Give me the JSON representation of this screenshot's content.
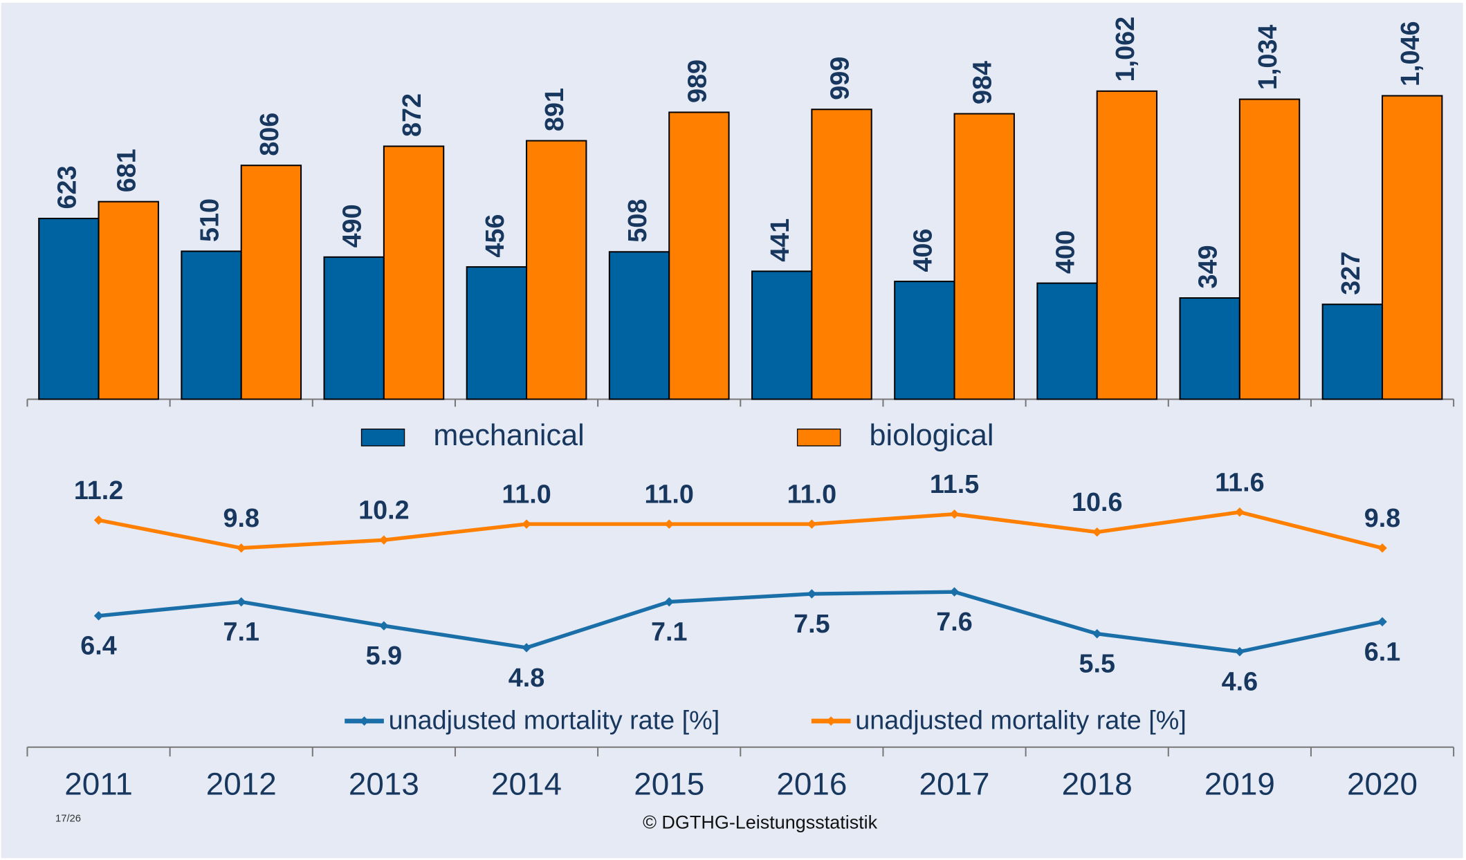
{
  "chart_data": [
    {
      "type": "bar",
      "categories": [
        "2011",
        "2012",
        "2013",
        "2014",
        "2015",
        "2016",
        "2017",
        "2018",
        "2019",
        "2020"
      ],
      "ylim": [
        0,
        1360
      ],
      "series": [
        {
          "name": "mechanical",
          "color": "#0063a1",
          "values": [
            623,
            510,
            490,
            456,
            508,
            441,
            406,
            400,
            349,
            327
          ]
        },
        {
          "name": "biological",
          "color": "#ff7f00",
          "values": [
            681,
            806,
            872,
            891,
            989,
            999,
            984,
            1062,
            1034,
            1046
          ],
          "value_labels": [
            "681",
            "806",
            "872",
            "891",
            "989",
            "999",
            "984",
            "1,062",
            "1,034",
            "1,046"
          ]
        }
      ]
    },
    {
      "type": "line",
      "ylim": [
        0,
        16
      ],
      "series": [
        {
          "name": "unadjusted mortality rate [%]",
          "color": "#1a6fa8",
          "values": [
            6.4,
            7.1,
            5.9,
            4.8,
            7.1,
            7.5,
            7.6,
            5.5,
            4.6,
            6.1
          ]
        },
        {
          "name": "unadjusted mortality rate [%]",
          "color": "#ff8000",
          "values": [
            11.2,
            9.8,
            10.2,
            11.0,
            11.0,
            11.0,
            11.5,
            10.6,
            11.6,
            9.8
          ],
          "value_labels": [
            "11.2",
            "9.8",
            "10.2",
            "11.0",
            "11.0",
            "11.0",
            "11.5",
            "10.6",
            "11.6",
            "9.8"
          ]
        }
      ]
    }
  ],
  "footer": {
    "page": "17/26",
    "source": "© DGTHG-Leistungsstatistik"
  }
}
